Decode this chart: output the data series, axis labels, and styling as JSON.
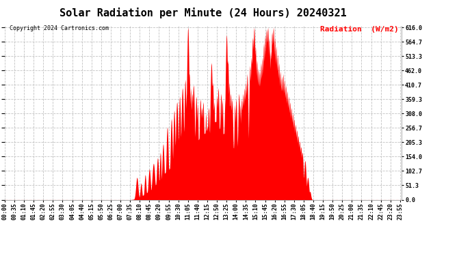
{
  "title": "Solar Radiation per Minute (24 Hours) 20240321",
  "copyright_text": "Copyright 2024 Cartronics.com",
  "ylabel": "Radiation  (W/m2)",
  "ylabel_color": "#ff0000",
  "fill_color": "#ff0000",
  "line_color": "#ff0000",
  "background_color": "#ffffff",
  "grid_color": "#bbbbbb",
  "yticks": [
    0.0,
    51.3,
    102.7,
    154.0,
    205.3,
    256.7,
    308.0,
    359.3,
    410.7,
    462.0,
    513.3,
    564.7,
    616.0
  ],
  "ymax": 616.0,
  "ymin": 0.0,
  "dashed_zero_color": "#ff0000",
  "title_fontsize": 11,
  "tick_fontsize": 6.0,
  "ylabel_fontsize": 8,
  "copyright_fontsize": 6.0
}
